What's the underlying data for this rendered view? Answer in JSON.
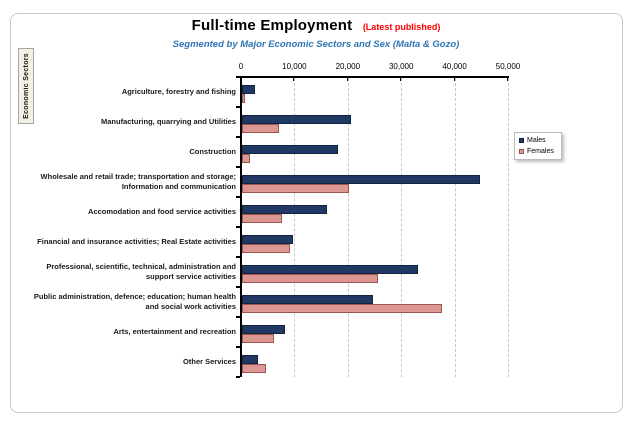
{
  "title": {
    "main": "Full-time Employment",
    "annotation": "(Latest published)"
  },
  "subtitle": "Segmented by Major Economic Sectors and Sex (Malta & Gozo)",
  "y_axis_title": "Economic Sectors",
  "legend": {
    "items": [
      {
        "label": "Males"
      },
      {
        "label": "Females"
      }
    ]
  },
  "colors": {
    "males": "#1F3864",
    "males_border": "#15243E",
    "females": "#DC9793",
    "females_border": "#9C5550",
    "title_annotation": "#FF0000",
    "subtitle": "#2E75B6",
    "gridline": "#C6C6C6",
    "axis": "#000000",
    "sector_box_bg": "#F2F0E3"
  },
  "chart_data": {
    "type": "bar",
    "orientation": "horizontal",
    "title": "Full-time Employment (Latest published)",
    "subtitle": "Segmented by Major Economic Sectors and Sex (Malta & Gozo)",
    "xlabel": "",
    "ylabel": "Economic Sectors",
    "xlim": [
      0,
      50000
    ],
    "x_ticks": [
      0,
      10000,
      20000,
      30000,
      40000,
      50000
    ],
    "x_tick_labels": [
      "0",
      "10,000",
      "20,000",
      "30,000",
      "40,000",
      "50,000"
    ],
    "grid": "dashed-vertical",
    "legend_position": "right",
    "categories": [
      "Agriculture, forestry and fishing",
      "Manufacturing, quarrying and Utilities",
      "Construction",
      "Wholesale and retail trade; transportation and storage; Information and communication",
      "Accomodation and food service activities",
      "Financial and insurance activities; Real Estate activities",
      "Professional, scientific, technical, administration and support service activities",
      "Public administration, defence; education; human health and social work activities",
      "Arts, entertainment and recreation",
      "Other Services"
    ],
    "series": [
      {
        "name": "Males",
        "values": [
          2500,
          20500,
          18000,
          44500,
          16000,
          9500,
          33000,
          24500,
          8000,
          3000
        ]
      },
      {
        "name": "Females",
        "values": [
          600,
          7000,
          1500,
          20000,
          7500,
          9000,
          25500,
          37500,
          6000,
          4500
        ]
      }
    ]
  }
}
